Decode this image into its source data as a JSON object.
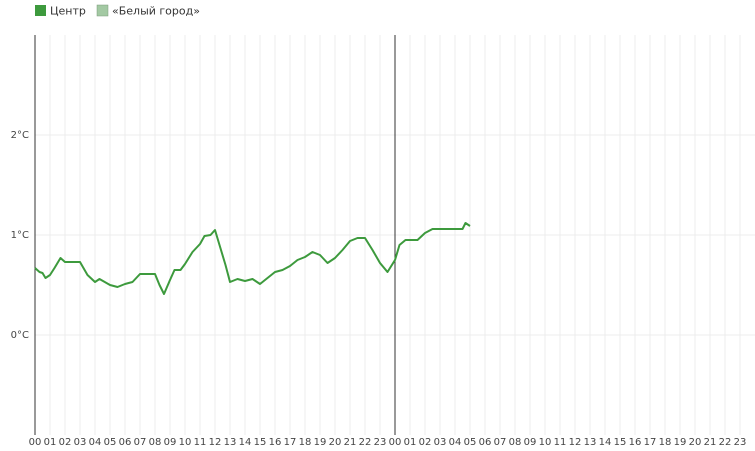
{
  "chart_data": {
    "type": "line",
    "x": [
      0,
      0.3,
      0.5,
      0.7,
      1,
      1.3,
      1.7,
      2,
      3,
      3.5,
      4,
      4.3,
      5,
      5.5,
      6,
      6.5,
      7,
      8,
      8.3,
      8.6,
      9,
      9.3,
      9.7,
      10,
      10.5,
      11,
      11.3,
      11.7,
      12,
      12.3,
      12.7,
      13,
      13.5,
      14,
      14.5,
      15,
      15.5,
      16,
      16.5,
      17,
      17.5,
      18,
      18.5,
      19,
      19.5,
      20,
      20.5,
      21,
      21.5,
      22,
      22.5,
      23,
      23.5,
      24,
      24.3,
      24.7,
      25.5,
      26,
      26.5,
      28.5,
      28.7,
      29
    ],
    "series": [
      {
        "name": "Центр",
        "color": "#3d9a3d",
        "values": [
          0.67,
          0.63,
          0.62,
          0.57,
          0.6,
          0.67,
          0.77,
          0.73,
          0.73,
          0.6,
          0.53,
          0.56,
          0.5,
          0.48,
          0.51,
          0.53,
          0.61,
          0.61,
          0.5,
          0.41,
          0.55,
          0.65,
          0.65,
          0.71,
          0.83,
          0.91,
          0.99,
          1.0,
          1.05,
          0.9,
          0.7,
          0.53,
          0.56,
          0.54,
          0.56,
          0.51,
          0.57,
          0.63,
          0.65,
          0.69,
          0.75,
          0.78,
          0.83,
          0.8,
          0.72,
          0.77,
          0.85,
          0.94,
          0.97,
          0.97,
          0.85,
          0.72,
          0.63,
          0.75,
          0.9,
          0.95,
          0.95,
          1.02,
          1.06,
          1.06,
          1.12,
          1.09
        ]
      },
      {
        "name": "«Белый город»",
        "color": "#a3c9a3",
        "values": [
          null,
          null,
          null,
          null,
          null,
          null,
          null,
          null,
          null,
          null,
          null,
          null,
          null,
          null,
          null,
          null,
          null,
          null,
          null,
          null,
          null,
          null,
          null,
          null,
          null,
          null,
          null,
          null,
          null,
          null,
          null,
          null,
          null,
          null,
          null,
          null,
          null,
          null,
          null,
          null,
          null,
          null,
          null,
          null,
          null,
          null,
          null,
          null,
          null,
          null,
          null,
          null,
          null,
          null,
          null,
          null,
          null,
          null,
          null,
          null,
          null,
          null
        ]
      }
    ],
    "xlim": [
      0,
      48
    ],
    "xticks": [
      {
        "value": 0,
        "label": "00"
      },
      {
        "value": 1,
        "label": "01"
      },
      {
        "value": 2,
        "label": "02"
      },
      {
        "value": 3,
        "label": "03"
      },
      {
        "value": 4,
        "label": "04"
      },
      {
        "value": 5,
        "label": "05"
      },
      {
        "value": 6,
        "label": "06"
      },
      {
        "value": 7,
        "label": "07"
      },
      {
        "value": 8,
        "label": "08"
      },
      {
        "value": 9,
        "label": "09"
      },
      {
        "value": 10,
        "label": "10"
      },
      {
        "value": 11,
        "label": "11"
      },
      {
        "value": 12,
        "label": "12"
      },
      {
        "value": 13,
        "label": "13"
      },
      {
        "value": 14,
        "label": "14"
      },
      {
        "value": 15,
        "label": "15"
      },
      {
        "value": 16,
        "label": "16"
      },
      {
        "value": 17,
        "label": "17"
      },
      {
        "value": 18,
        "label": "18"
      },
      {
        "value": 19,
        "label": "19"
      },
      {
        "value": 20,
        "label": "20"
      },
      {
        "value": 21,
        "label": "21"
      },
      {
        "value": 22,
        "label": "22"
      },
      {
        "value": 23,
        "label": "23"
      },
      {
        "value": 24,
        "label": "00"
      },
      {
        "value": 25,
        "label": "01"
      },
      {
        "value": 26,
        "label": "02"
      },
      {
        "value": 27,
        "label": "03"
      },
      {
        "value": 28,
        "label": "04"
      },
      {
        "value": 29,
        "label": "05"
      },
      {
        "value": 30,
        "label": "06"
      },
      {
        "value": 31,
        "label": "07"
      },
      {
        "value": 32,
        "label": "08"
      },
      {
        "value": 33,
        "label": "09"
      },
      {
        "value": 34,
        "label": "10"
      },
      {
        "value": 35,
        "label": "11"
      },
      {
        "value": 36,
        "label": "12"
      },
      {
        "value": 37,
        "label": "13"
      },
      {
        "value": 38,
        "label": "14"
      },
      {
        "value": 39,
        "label": "15"
      },
      {
        "value": 40,
        "label": "16"
      },
      {
        "value": 41,
        "label": "17"
      },
      {
        "value": 42,
        "label": "18"
      },
      {
        "value": 43,
        "label": "19"
      },
      {
        "value": 44,
        "label": "20"
      },
      {
        "value": 45,
        "label": "21"
      },
      {
        "value": 46,
        "label": "22"
      },
      {
        "value": 47,
        "label": "23"
      }
    ],
    "ylim": [
      -1,
      3
    ],
    "yticks": [
      {
        "value": 0,
        "label": "0°C"
      },
      {
        "value": 1,
        "label": "1°C"
      },
      {
        "value": 2,
        "label": "2°C"
      }
    ],
    "grid": true
  }
}
